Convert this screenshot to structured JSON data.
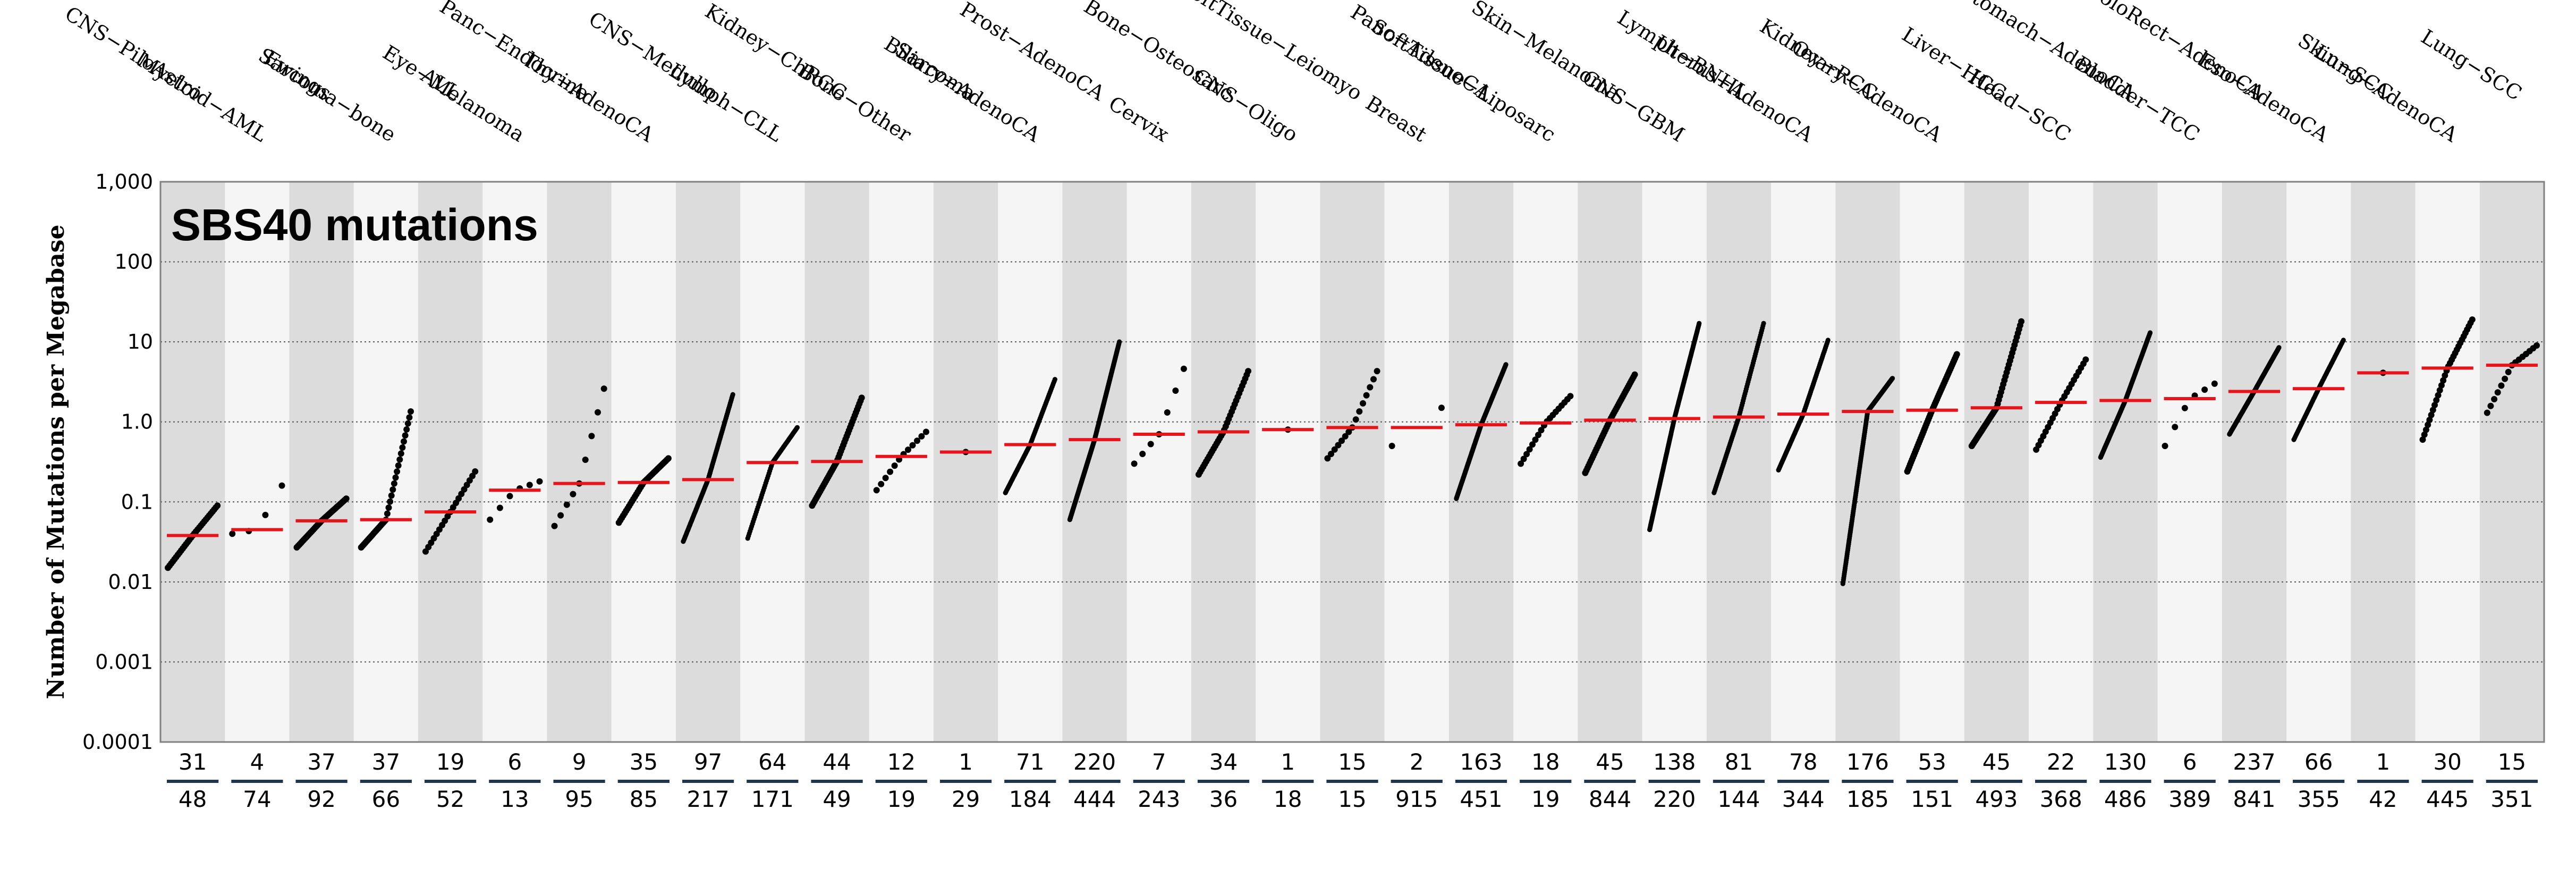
{
  "chart_data": {
    "type": "scatter",
    "title": "SBS40 mutations",
    "ylabel": "Number of Mutations per Megabase",
    "yscale": "log",
    "ylim": [
      0.0001,
      1000
    ],
    "yticks": [
      {
        "value": 0.0001,
        "label": "0.0001"
      },
      {
        "value": 0.001,
        "label": "0.001"
      },
      {
        "value": 0.01,
        "label": "0.01"
      },
      {
        "value": 0.1,
        "label": "0.1"
      },
      {
        "value": 1,
        "label": "1.0"
      },
      {
        "value": 10,
        "label": "10"
      },
      {
        "value": 100,
        "label": "100"
      },
      {
        "value": 1000,
        "label": "1,000"
      }
    ],
    "grid": "horizontal-dotted",
    "median_color": "#e8141b",
    "point_color": "#000000",
    "band_colors": [
      "#dcdcdc",
      "#f5f5f5"
    ],
    "groups": [
      {
        "name": "CNS−PiloAstro",
        "n_with": 31,
        "n_total": 48,
        "median": 0.038,
        "min": 0.015,
        "max": 0.09
      },
      {
        "name": "Myeloid−AML",
        "n_with": 4,
        "n_total": 74,
        "median": 0.045,
        "min": 0.04,
        "max": 0.16
      },
      {
        "name": "Ewings",
        "n_with": 37,
        "n_total": 92,
        "median": 0.058,
        "min": 0.027,
        "max": 0.11
      },
      {
        "name": "Sarcoma−bone",
        "n_with": 37,
        "n_total": 66,
        "median": 0.06,
        "min": 0.027,
        "max": 1.35
      },
      {
        "name": "ALL",
        "n_with": 19,
        "n_total": 52,
        "median": 0.075,
        "min": 0.024,
        "max": 0.24
      },
      {
        "name": "Eye−Melanoma",
        "n_with": 6,
        "n_total": 13,
        "median": 0.14,
        "min": 0.06,
        "max": 0.18
      },
      {
        "name": "Panc−Endocrine",
        "n_with": 9,
        "n_total": 95,
        "median": 0.17,
        "min": 0.05,
        "max": 2.6
      },
      {
        "name": "Thy−AdenoCA",
        "n_with": 35,
        "n_total": 85,
        "median": 0.175,
        "min": 0.055,
        "max": 0.35
      },
      {
        "name": "CNS−Medullo",
        "n_with": 97,
        "n_total": 217,
        "median": 0.19,
        "min": 0.032,
        "max": 2.2
      },
      {
        "name": "Lymph−CLL",
        "n_with": 64,
        "n_total": 171,
        "median": 0.31,
        "min": 0.035,
        "max": 0.85
      },
      {
        "name": "Kidney−ChRCC",
        "n_with": 44,
        "n_total": 49,
        "median": 0.32,
        "min": 0.09,
        "max": 2.0
      },
      {
        "name": "Bone−Other",
        "n_with": 12,
        "n_total": 19,
        "median": 0.37,
        "min": 0.14,
        "max": 0.75
      },
      {
        "name": "Sarcoma",
        "n_with": 1,
        "n_total": 29,
        "median": 0.42,
        "min": 0.42,
        "max": 0.42
      },
      {
        "name": "Biliary−AdenoCA",
        "n_with": 71,
        "n_total": 184,
        "median": 0.52,
        "min": 0.13,
        "max": 3.4
      },
      {
        "name": "Prost−AdenoCA",
        "n_with": 220,
        "n_total": 444,
        "median": 0.6,
        "min": 0.06,
        "max": 10
      },
      {
        "name": "Cervix",
        "n_with": 7,
        "n_total": 243,
        "median": 0.7,
        "min": 0.3,
        "max": 4.6
      },
      {
        "name": "Bone−Osteosarc",
        "n_with": 34,
        "n_total": 36,
        "median": 0.75,
        "min": 0.22,
        "max": 4.3
      },
      {
        "name": "CNS−Oligo",
        "n_with": 1,
        "n_total": 18,
        "median": 0.8,
        "min": 0.8,
        "max": 0.8
      },
      {
        "name": "SoftTissue−Leiomyo",
        "n_with": 15,
        "n_total": 15,
        "median": 0.85,
        "min": 0.35,
        "max": 4.3
      },
      {
        "name": "Breast",
        "n_with": 2,
        "n_total": 915,
        "median": 0.85,
        "min": 0.5,
        "max": 1.5
      },
      {
        "name": "Panc−AdenoCA",
        "n_with": 163,
        "n_total": 451,
        "median": 0.92,
        "min": 0.11,
        "max": 5.2
      },
      {
        "name": "SoftTissue−Liposarc",
        "n_with": 18,
        "n_total": 19,
        "median": 0.97,
        "min": 0.3,
        "max": 2.1
      },
      {
        "name": "Skin−Melanoma",
        "n_with": 45,
        "n_total": 844,
        "median": 1.05,
        "min": 0.23,
        "max": 3.9
      },
      {
        "name": "CNS−GBM",
        "n_with": 138,
        "n_total": 220,
        "median": 1.1,
        "min": 0.045,
        "max": 17
      },
      {
        "name": "Lymph−BNHL",
        "n_with": 81,
        "n_total": 144,
        "median": 1.15,
        "min": 0.13,
        "max": 17
      },
      {
        "name": "Uterus−AdenoCA",
        "n_with": 78,
        "n_total": 344,
        "median": 1.25,
        "min": 0.25,
        "max": 10.5
      },
      {
        "name": "Kidney−RCC",
        "n_with": 176,
        "n_total": 185,
        "median": 1.35,
        "min": 0.0095,
        "max": 3.5
      },
      {
        "name": "Ovary−AdenoCA",
        "n_with": 53,
        "n_total": 151,
        "median": 1.4,
        "min": 0.24,
        "max": 7
      },
      {
        "name": "Liver−HCC",
        "n_with": 45,
        "n_total": 493,
        "median": 1.5,
        "min": 0.5,
        "max": 18
      },
      {
        "name": "Head−SCC",
        "n_with": 22,
        "n_total": 368,
        "median": 1.75,
        "min": 0.45,
        "max": 6
      },
      {
        "name": "Stomach−AdenoCA",
        "n_with": 130,
        "n_total": 486,
        "median": 1.85,
        "min": 0.36,
        "max": 13
      },
      {
        "name": "Bladder−TCC",
        "n_with": 6,
        "n_total": 389,
        "median": 1.95,
        "min": 0.5,
        "max": 3
      },
      {
        "name": "ColoRect−AdenoCA",
        "n_with": 237,
        "n_total": 841,
        "median": 2.4,
        "min": 0.7,
        "max": 8.5
      },
      {
        "name": "Eso−AdenoCA",
        "n_with": 66,
        "n_total": 355,
        "median": 2.6,
        "min": 0.6,
        "max": 10.5
      },
      {
        "name": "Skin−SCC",
        "n_with": 1,
        "n_total": 42,
        "median": 4.1,
        "min": 4.1,
        "max": 4.1
      },
      {
        "name": "Lung−AdenoCA",
        "n_with": 30,
        "n_total": 445,
        "median": 4.7,
        "min": 0.6,
        "max": 19
      },
      {
        "name": "Lung−SCC",
        "n_with": 15,
        "n_total": 351,
        "median": 5.1,
        "min": 1.3,
        "max": 9
      }
    ]
  }
}
